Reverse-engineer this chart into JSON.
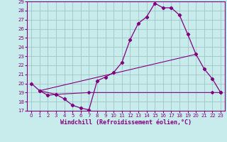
{
  "xlabel": "Windchill (Refroidissement éolien,°C)",
  "bg_color": "#c8ecec",
  "grid_color": "#9bbfbf",
  "line_color": "#800080",
  "xlim": [
    -0.5,
    23.5
  ],
  "ylim": [
    17,
    29
  ],
  "xticks": [
    0,
    1,
    2,
    3,
    4,
    5,
    6,
    7,
    8,
    9,
    10,
    11,
    12,
    13,
    14,
    15,
    16,
    17,
    18,
    19,
    20,
    21,
    22,
    23
  ],
  "yticks": [
    17,
    18,
    19,
    20,
    21,
    22,
    23,
    24,
    25,
    26,
    27,
    28,
    29
  ],
  "line1_x": [
    0,
    1,
    2,
    3,
    4,
    5,
    6,
    7,
    8,
    9,
    10,
    11,
    12,
    13,
    14,
    15,
    16,
    17,
    18,
    19,
    20,
    21,
    22,
    23
  ],
  "line1_y": [
    20.0,
    19.2,
    18.7,
    18.8,
    18.3,
    17.6,
    17.3,
    17.1,
    20.3,
    20.7,
    21.2,
    22.3,
    24.8,
    26.6,
    27.3,
    28.8,
    28.3,
    28.3,
    27.5,
    25.4,
    23.2,
    21.6,
    20.5,
    19.0
  ],
  "line2_x": [
    1,
    3,
    7,
    22,
    23
  ],
  "line2_y": [
    19.2,
    18.8,
    19.0,
    19.0,
    19.0
  ],
  "line3_x": [
    1,
    20
  ],
  "line3_y": [
    19.2,
    23.2
  ],
  "tick_fontsize": 5.0,
  "label_fontsize": 6.0
}
